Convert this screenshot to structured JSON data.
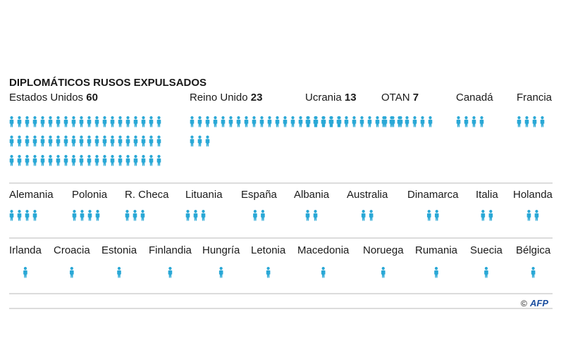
{
  "chart_data": {
    "type": "pictogram",
    "title": "DIPLOMÁTICOS RUSOS EXPULSADOS",
    "icon": "person-icon",
    "icon_color": "#2aa8d6",
    "rows": [
      [
        {
          "label": "Estados Unidos",
          "value": 60,
          "value_label": "60"
        },
        {
          "label": "Reino Unido",
          "value": 23,
          "value_label": "23"
        },
        {
          "label": "Ucrania",
          "value": 13,
          "value_label": "13"
        },
        {
          "label": "OTAN",
          "value": 7,
          "value_label": "7"
        },
        {
          "label": "Canadá",
          "value": 4
        },
        {
          "label": "Francia",
          "value": 4
        }
      ],
      [
        {
          "label": "Alemania",
          "value": 4
        },
        {
          "label": "Polonia",
          "value": 4
        },
        {
          "label": "R. Checa",
          "value": 3
        },
        {
          "label": "Lituania",
          "value": 3
        },
        {
          "label": "España",
          "value": 2
        },
        {
          "label": "Albania",
          "value": 2
        },
        {
          "label": "Australia",
          "value": 2
        },
        {
          "label": "Dinamarca",
          "value": 2
        },
        {
          "label": "Italia",
          "value": 2
        },
        {
          "label": "Holanda",
          "value": 2
        }
      ],
      [
        {
          "label": "Irlanda",
          "value": 1
        },
        {
          "label": "Croacia",
          "value": 1
        },
        {
          "label": "Estonia",
          "value": 1
        },
        {
          "label": "Finlandia",
          "value": 1
        },
        {
          "label": "Hungría",
          "value": 1
        },
        {
          "label": "Letonia",
          "value": 1
        },
        {
          "label": "Macedonia",
          "value": 1
        },
        {
          "label": "Noruega",
          "value": 1
        },
        {
          "label": "Rumania",
          "value": 1
        },
        {
          "label": "Suecia",
          "value": 1
        },
        {
          "label": "Bélgica",
          "value": 1
        }
      ]
    ]
  },
  "credit": {
    "copyright": "©",
    "logo_text": "AFP"
  }
}
